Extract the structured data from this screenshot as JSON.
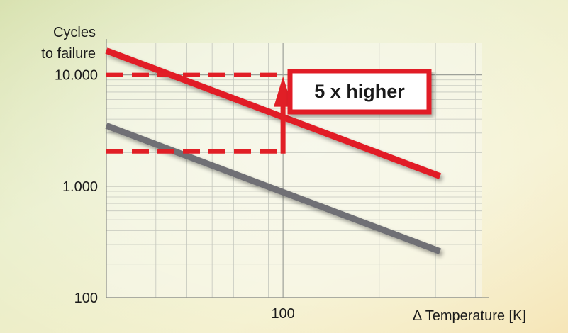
{
  "chart_data": {
    "type": "line",
    "x_scale": "log",
    "y_scale": "log",
    "xlabel": "Δ Temperature [K]",
    "ylabel_lines": [
      "Cycles",
      "to failure"
    ],
    "x_ticks": [
      {
        "value": 100,
        "label": "100"
      }
    ],
    "y_ticks": [
      {
        "value": 100,
        "label": "100"
      },
      {
        "value": 1000,
        "label": "1.000"
      },
      {
        "value": 10000,
        "label": "10.000"
      }
    ],
    "xlim": [
      28,
      420
    ],
    "ylim": [
      100,
      19500
    ],
    "series": [
      {
        "color": "#e11f26",
        "points": [
          [
            28,
            16500
          ],
          [
            310,
            1230
          ]
        ]
      },
      {
        "color": "#707074",
        "points": [
          [
            28,
            3500
          ],
          [
            310,
            260
          ]
        ]
      }
    ],
    "reference_lines": {
      "color": "#e11f26",
      "x": 100,
      "y_values": [
        10000,
        2050
      ]
    },
    "annotation": {
      "text": "5 x higher",
      "color": "#e11f26"
    },
    "grid": true
  }
}
